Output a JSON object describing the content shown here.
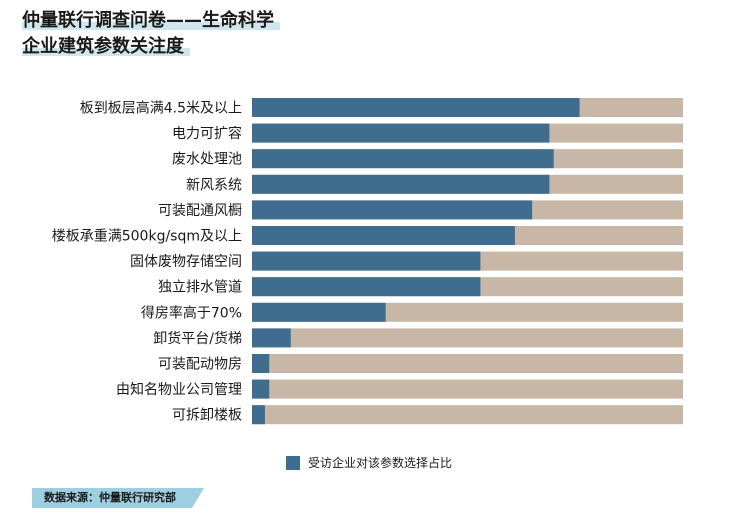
{
  "title": {
    "line1": "仲量联行调查问卷——生命科学",
    "line2": "企业建筑参数关注度"
  },
  "legend": {
    "label": "受访企业对该参数选择占比"
  },
  "source": "数据来源：仲量联行研究部",
  "colors": {
    "value": "#3f6d8f",
    "remainder": "#c8b6a6",
    "highlight": "#cfe6ec",
    "source_bg": "#9ecfe0"
  },
  "chart_data": {
    "type": "bar",
    "orientation": "horizontal",
    "stacked_to_total": true,
    "categories": [
      "板到板层高满4.5米及以上",
      "电力可扩容",
      "废水处理池",
      "新风系统",
      "可装配通风橱",
      "楼板承重满500kg/sqm及以上",
      "固体废物存储空间",
      "独立排水管道",
      "得房率高于70%",
      "卸货平台/货梯",
      "可装配动物房",
      "由知名物业公司管理",
      "可拆卸楼板"
    ],
    "series": [
      {
        "name": "受访企业对该参数选择占比",
        "values": [
          76,
          69,
          70,
          69,
          65,
          61,
          53,
          53,
          31,
          9,
          4,
          4,
          3
        ]
      }
    ],
    "xlim": [
      0,
      100
    ]
  }
}
